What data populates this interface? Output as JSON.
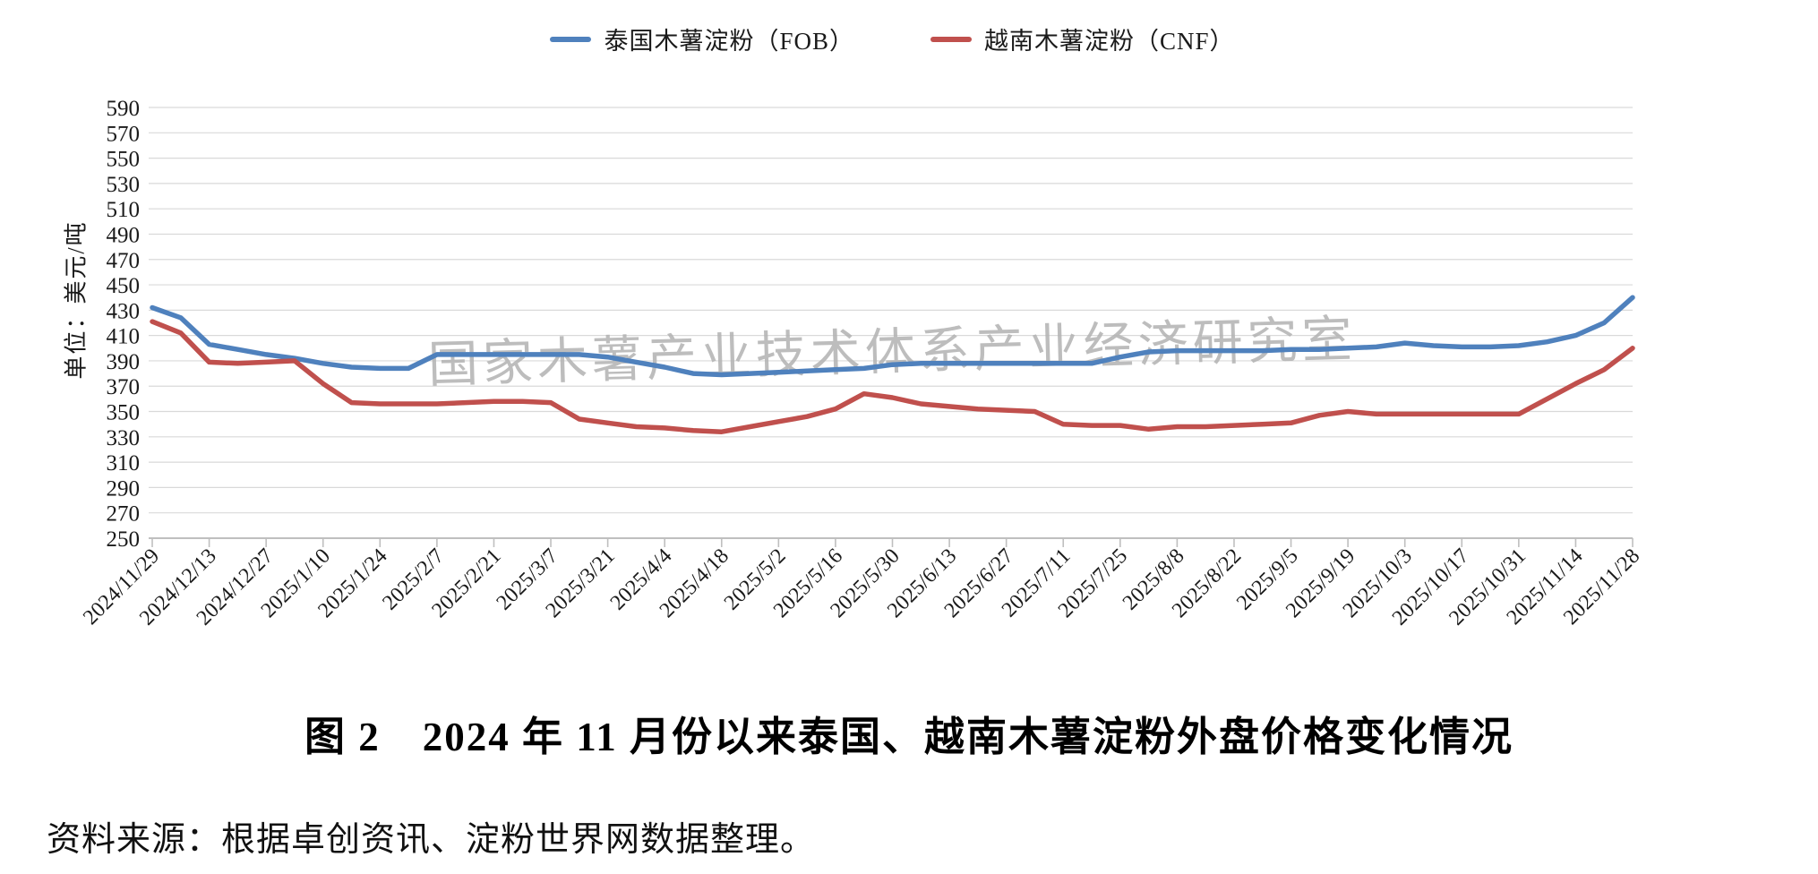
{
  "page": {
    "background": "#ffffff"
  },
  "legend": [
    {
      "label": "泰国木薯淀粉（FOB）",
      "color": "#4F81BD"
    },
    {
      "label": "越南木薯淀粉（CNF）",
      "color": "#C0504D"
    }
  ],
  "watermark": "国家木薯产业技术体系产业经济研究室",
  "y_axis_title": "单位：美元/吨",
  "figure_title": "图 2　2024 年 11 月份以来泰国、越南木薯淀粉外盘价格变化情况",
  "source_note": "资料来源：根据卓创资讯、淀粉世界网数据整理。",
  "colors": {
    "thailand_line": "#4F81BD",
    "vietnam_line": "#C0504D",
    "gridline": "#d9d9d9",
    "axis_line": "#bfbfbf",
    "tick_text": "#1a1a1a",
    "watermark": "#b2b2b2"
  },
  "chart_data": {
    "type": "line",
    "title": "图 2　2024 年 11 月份以来泰国、越南木薯淀粉外盘价格变化情况",
    "xlabel": "",
    "ylabel": "单位：美元/吨",
    "ylim": [
      250,
      590
    ],
    "ytick_step": 20,
    "grid": "horizontal",
    "legend_position": "top",
    "x": [
      "2024/11/29",
      "2024/12/6",
      "2024/12/13",
      "2024/12/20",
      "2024/12/27",
      "2025/1/3",
      "2025/1/10",
      "2025/1/17",
      "2025/1/24",
      "2025/1/31",
      "2025/2/7",
      "2025/2/14",
      "2025/2/21",
      "2025/2/28",
      "2025/3/7",
      "2025/3/14",
      "2025/3/21",
      "2025/3/28",
      "2025/4/4",
      "2025/4/11",
      "2025/4/18",
      "2025/4/25",
      "2025/5/2",
      "2025/5/9",
      "2025/5/16",
      "2025/5/23",
      "2025/5/30",
      "2025/6/6",
      "2025/6/13",
      "2025/6/20",
      "2025/6/27",
      "2025/7/4",
      "2025/7/11",
      "2025/7/18",
      "2025/7/25",
      "2025/8/1",
      "2025/8/8",
      "2025/8/15",
      "2025/8/22",
      "2025/8/29",
      "2025/9/5",
      "2025/9/12",
      "2025/9/19",
      "2025/9/26",
      "2025/10/3",
      "2025/10/10",
      "2025/10/17",
      "2025/10/24",
      "2025/10/31",
      "2025/11/7",
      "2025/11/14",
      "2025/11/21",
      "2025/11/28"
    ],
    "x_tick_labels": [
      "2024/11/29",
      "2024/12/13",
      "2024/12/27",
      "2025/1/10",
      "2025/1/24",
      "2025/2/7",
      "2025/2/21",
      "2025/3/7",
      "2025/3/21",
      "2025/4/4",
      "2025/4/18",
      "2025/5/2",
      "2025/5/16",
      "2025/5/30",
      "2025/6/13",
      "2025/6/27",
      "2025/7/11",
      "2025/7/25",
      "2025/8/8",
      "2025/8/22",
      "2025/9/5",
      "2025/9/19",
      "2025/10/3",
      "2025/10/17",
      "2025/10/31",
      "2025/11/14",
      "2025/11/28"
    ],
    "series": [
      {
        "name": "泰国木薯淀粉（FOB）",
        "color": "#4F81BD",
        "values": [
          432,
          424,
          403,
          399,
          395,
          392,
          388,
          385,
          384,
          384,
          395,
          395,
          395,
          395,
          395,
          395,
          393,
          389,
          385,
          380,
          379,
          380,
          381,
          382,
          383,
          384,
          387,
          388,
          388,
          388,
          388,
          388,
          388,
          388,
          393,
          397,
          398,
          398,
          398,
          398,
          399,
          399,
          400,
          401,
          404,
          402,
          401,
          401,
          402,
          405,
          410,
          420,
          440
        ]
      },
      {
        "name": "越南木薯淀粉（CNF）",
        "color": "#C0504D",
        "values": [
          421,
          412,
          389,
          388,
          389,
          390,
          372,
          357,
          356,
          356,
          356,
          357,
          358,
          358,
          357,
          344,
          341,
          338,
          337,
          335,
          334,
          338,
          342,
          346,
          352,
          364,
          361,
          356,
          354,
          352,
          351,
          350,
          340,
          339,
          339,
          336,
          338,
          338,
          339,
          340,
          341,
          347,
          350,
          348,
          348,
          348,
          348,
          348,
          348,
          360,
          372,
          383,
          400
        ]
      }
    ]
  }
}
